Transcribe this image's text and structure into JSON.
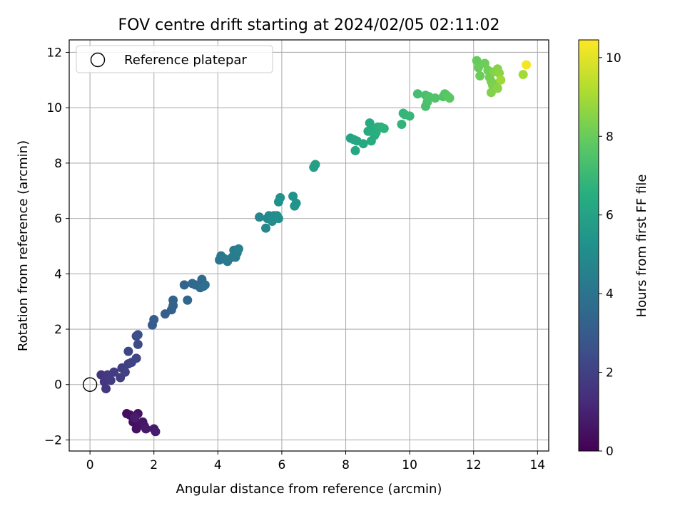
{
  "chart_data": {
    "type": "scatter",
    "title": "FOV centre drift starting at 2024/02/05 02:11:02",
    "xlabel": "Angular distance from reference (arcmin)",
    "ylabel": "Rotation from reference (arcmin)",
    "colorbar_label": "Hours from first FF file",
    "xlim": [
      -0.65,
      14.35
    ],
    "ylim": [
      -2.4,
      12.45
    ],
    "x_ticks": [
      0,
      2,
      4,
      6,
      8,
      10,
      12,
      14
    ],
    "x_tick_labels": [
      "0",
      "2",
      "4",
      "6",
      "8",
      "10",
      "12",
      "14"
    ],
    "y_ticks": [
      -2,
      0,
      2,
      4,
      6,
      8,
      10,
      12
    ],
    "y_tick_labels": [
      "−2",
      "0",
      "2",
      "4",
      "6",
      "8",
      "10",
      "12"
    ],
    "colorbar_range": [
      0,
      10.45
    ],
    "colorbar_ticks": [
      0,
      2,
      4,
      6,
      8,
      10
    ],
    "colorbar_tick_labels": [
      "0",
      "2",
      "4",
      "6",
      "8",
      "10"
    ],
    "colormap": "viridis",
    "grid": true,
    "legend": {
      "position": "top-left",
      "entries": [
        "Reference platepar"
      ]
    },
    "reference_point": {
      "x": 0,
      "y": 0
    },
    "points": [
      [
        1.15,
        -1.05,
        0.35
      ],
      [
        1.25,
        -1.1,
        0.38
      ],
      [
        1.35,
        -1.35,
        0.42
      ],
      [
        1.45,
        -1.6,
        0.45
      ],
      [
        1.55,
        -1.45,
        0.5
      ],
      [
        1.5,
        -1.05,
        0.55
      ],
      [
        1.65,
        -1.35,
        0.6
      ],
      [
        1.7,
        -1.5,
        0.65
      ],
      [
        1.75,
        -1.6,
        0.7
      ],
      [
        2.0,
        -1.6,
        0.75
      ],
      [
        2.05,
        -1.7,
        0.8
      ],
      [
        1.4,
        -1.2,
        0.85
      ],
      [
        0.35,
        0.35,
        1.6
      ],
      [
        0.45,
        0.1,
        1.65
      ],
      [
        0.5,
        -0.15,
        1.7
      ],
      [
        0.55,
        0.35,
        1.75
      ],
      [
        0.65,
        0.15,
        1.8
      ],
      [
        0.75,
        0.45,
        1.85
      ],
      [
        0.95,
        0.25,
        1.9
      ],
      [
        1.0,
        0.6,
        1.95
      ],
      [
        1.1,
        0.45,
        2.0
      ],
      [
        1.2,
        0.75,
        2.05
      ],
      [
        1.3,
        0.8,
        2.1
      ],
      [
        1.45,
        0.95,
        2.15
      ],
      [
        1.2,
        1.2,
        2.2
      ],
      [
        1.45,
        1.75,
        2.3
      ],
      [
        1.5,
        1.45,
        2.4
      ],
      [
        1.5,
        1.8,
        2.5
      ],
      [
        1.95,
        2.15,
        3.0
      ],
      [
        2.0,
        2.35,
        3.05
      ],
      [
        2.35,
        2.55,
        3.1
      ],
      [
        2.55,
        2.7,
        3.2
      ],
      [
        2.6,
        2.85,
        3.25
      ],
      [
        2.6,
        3.05,
        3.3
      ],
      [
        2.95,
        3.6,
        3.4
      ],
      [
        3.05,
        3.05,
        3.45
      ],
      [
        3.2,
        3.65,
        3.5
      ],
      [
        3.3,
        3.6,
        3.55
      ],
      [
        3.45,
        3.5,
        3.6
      ],
      [
        3.5,
        3.8,
        3.65
      ],
      [
        3.55,
        3.55,
        3.7
      ],
      [
        3.6,
        3.6,
        3.75
      ],
      [
        4.05,
        4.5,
        4.05
      ],
      [
        4.1,
        4.65,
        4.1
      ],
      [
        4.2,
        4.55,
        4.15
      ],
      [
        4.3,
        4.45,
        4.2
      ],
      [
        4.45,
        4.6,
        4.25
      ],
      [
        4.5,
        4.85,
        4.3
      ],
      [
        4.55,
        4.6,
        4.35
      ],
      [
        4.6,
        4.75,
        4.4
      ],
      [
        4.65,
        4.9,
        4.45
      ],
      [
        5.3,
        6.05,
        4.8
      ],
      [
        5.5,
        5.65,
        4.85
      ],
      [
        5.55,
        6.0,
        4.9
      ],
      [
        5.6,
        6.1,
        4.95
      ],
      [
        5.7,
        5.9,
        5.0
      ],
      [
        5.75,
        6.1,
        5.05
      ],
      [
        5.85,
        6.1,
        5.1
      ],
      [
        5.9,
        6.0,
        5.15
      ],
      [
        5.9,
        6.6,
        5.2
      ],
      [
        5.95,
        6.75,
        5.25
      ],
      [
        6.35,
        6.8,
        5.3
      ],
      [
        6.4,
        6.45,
        5.35
      ],
      [
        6.45,
        6.55,
        5.4
      ],
      [
        7.0,
        7.85,
        5.8
      ],
      [
        7.05,
        7.95,
        5.85
      ],
      [
        8.15,
        8.9,
        6.05
      ],
      [
        8.25,
        8.85,
        6.1
      ],
      [
        8.3,
        8.45,
        6.15
      ],
      [
        8.35,
        8.8,
        6.2
      ],
      [
        8.55,
        8.7,
        6.25
      ],
      [
        8.7,
        9.15,
        6.3
      ],
      [
        8.75,
        9.45,
        6.35
      ],
      [
        8.8,
        8.8,
        6.4
      ],
      [
        8.85,
        9.2,
        6.45
      ],
      [
        8.9,
        9.0,
        6.5
      ],
      [
        8.95,
        9.1,
        6.55
      ],
      [
        9.0,
        9.3,
        6.6
      ],
      [
        9.1,
        9.3,
        6.65
      ],
      [
        9.2,
        9.25,
        6.7
      ],
      [
        9.75,
        9.4,
        6.75
      ],
      [
        9.8,
        9.8,
        6.8
      ],
      [
        9.85,
        9.75,
        6.85
      ],
      [
        10.0,
        9.7,
        6.9
      ],
      [
        10.25,
        10.5,
        7.25
      ],
      [
        10.5,
        10.45,
        7.3
      ],
      [
        10.5,
        10.05,
        7.35
      ],
      [
        10.55,
        10.2,
        7.4
      ],
      [
        10.6,
        10.4,
        7.45
      ],
      [
        10.8,
        10.35,
        7.5
      ],
      [
        11.05,
        10.4,
        7.55
      ],
      [
        11.1,
        10.5,
        7.6
      ],
      [
        11.15,
        10.45,
        7.65
      ],
      [
        11.2,
        10.4,
        7.7
      ],
      [
        11.25,
        10.35,
        7.75
      ],
      [
        12.1,
        11.7,
        7.95
      ],
      [
        12.15,
        11.45,
        8.0
      ],
      [
        12.2,
        11.15,
        8.05
      ],
      [
        12.35,
        11.6,
        8.1
      ],
      [
        12.45,
        11.35,
        8.15
      ],
      [
        12.5,
        11.1,
        8.2
      ],
      [
        12.55,
        10.95,
        8.25
      ],
      [
        12.6,
        10.8,
        8.3
      ],
      [
        12.7,
        10.85,
        8.35
      ],
      [
        12.55,
        10.55,
        8.4
      ],
      [
        12.65,
        11.3,
        8.45
      ],
      [
        12.75,
        11.4,
        8.5
      ],
      [
        12.75,
        10.7,
        8.55
      ],
      [
        12.8,
        11.25,
        8.6
      ],
      [
        12.85,
        11.0,
        8.9
      ],
      [
        13.55,
        11.2,
        9.0
      ],
      [
        13.65,
        11.55,
        10.3
      ]
    ]
  }
}
